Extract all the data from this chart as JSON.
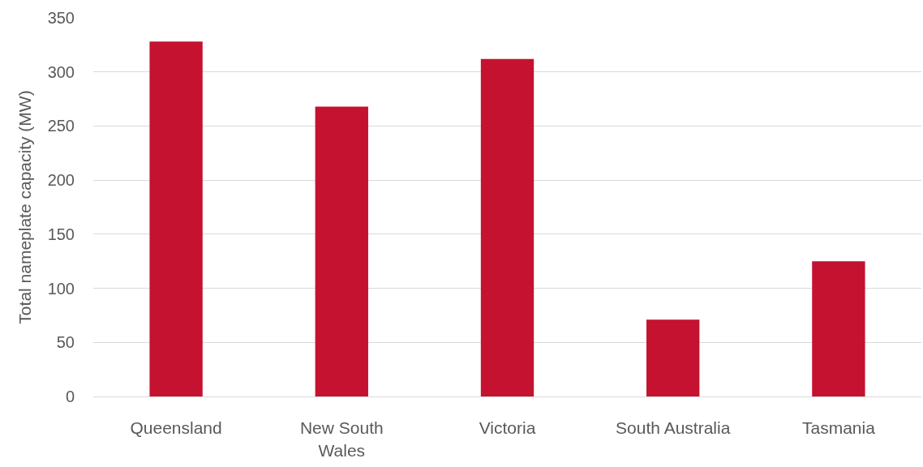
{
  "chart_data": {
    "type": "bar",
    "ylabel": "Total nameplate capacity (MW)",
    "categories": [
      "Queensland",
      "New South\nWales",
      "Victoria",
      "South Australia",
      "Tasmania"
    ],
    "values": [
      328,
      268,
      312,
      71,
      125
    ],
    "color": "#c41230",
    "ylim": [
      0,
      350
    ],
    "yticks": [
      0,
      50,
      100,
      150,
      200,
      250,
      300,
      350
    ],
    "grid": "y"
  }
}
